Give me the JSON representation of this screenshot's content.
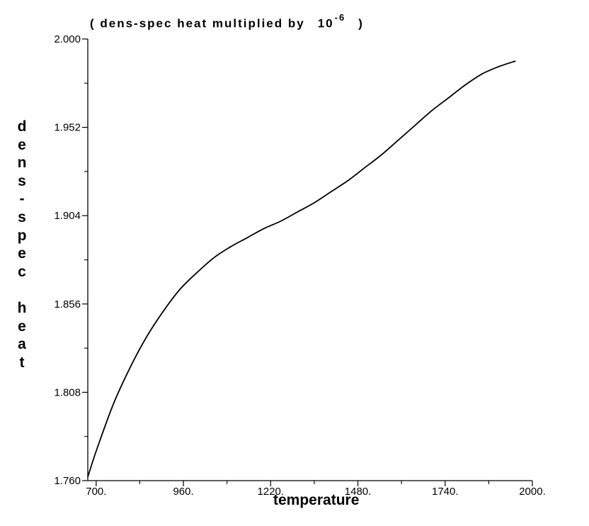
{
  "chart_data": {
    "type": "line",
    "title_prefix": "( dens-spec heat multiplied by",
    "title_base": "10",
    "title_exponent": "-6",
    "title_suffix": ")",
    "xlabel": "temperature",
    "ylabel": "dens-spec heat",
    "xlim": [
      675,
      2000
    ],
    "ylim": [
      1.76,
      2.0
    ],
    "x_tick_labels": [
      "700.",
      "960.",
      "1220.",
      "1480.",
      "1740.",
      "2000."
    ],
    "x_tick_values": [
      700,
      960,
      1220,
      1480,
      1740,
      2000
    ],
    "x_minor_ticks": [
      830,
      1090,
      1350,
      1610,
      1870
    ],
    "y_tick_labels": [
      "1.760",
      "1.808",
      "1.856",
      "1.904",
      "1.952",
      "2.000"
    ],
    "y_tick_values": [
      1.76,
      1.808,
      1.856,
      1.904,
      1.952,
      2.0
    ],
    "y_minor_ticks": [
      1.784,
      1.832,
      1.88,
      1.928,
      1.976
    ],
    "grid": false,
    "series": [
      {
        "x": [
          675,
          700,
          750,
          800,
          850,
          900,
          950,
          1000,
          1050,
          1100,
          1150,
          1200,
          1250,
          1300,
          1350,
          1400,
          1450,
          1500,
          1550,
          1600,
          1650,
          1700,
          1750,
          1800,
          1850,
          1900,
          1950
        ],
        "values": [
          1.762,
          1.776,
          1.801,
          1.821,
          1.838,
          1.852,
          1.864,
          1.873,
          1.881,
          1.887,
          1.892,
          1.897,
          1.901,
          1.906,
          1.911,
          1.917,
          1.923,
          1.93,
          1.937,
          1.945,
          1.953,
          1.961,
          1.968,
          1.975,
          1.981,
          1.985,
          1.988
        ]
      }
    ]
  }
}
